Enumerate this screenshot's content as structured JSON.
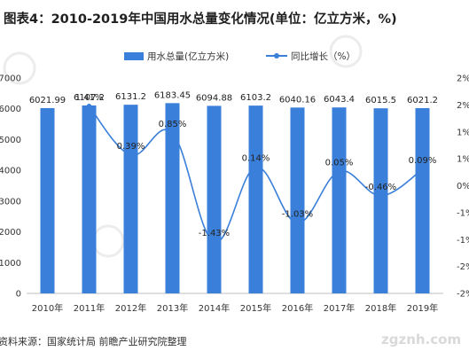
{
  "title": "图表4：2010-2019年中国用水总量变化情况(单位：亿立方米，%)",
  "source": "资料来源：国家统计局 前瞻产业研究院整理",
  "watermark": "zgznh.com",
  "colors": {
    "bar": "#3a7fd9",
    "line": "#3a7fd9",
    "grid": "#e6e6e6"
  },
  "chart_data": {
    "type": "bar",
    "categories": [
      "2010年",
      "2011年",
      "2012年",
      "2013年",
      "2014年",
      "2015年",
      "2016年",
      "2017年",
      "2018年",
      "2019年"
    ],
    "series": [
      {
        "name": "用水总量(亿立方米)",
        "type": "bar",
        "axis": "left",
        "values": [
          6021.99,
          6107.2,
          6131.2,
          6183.45,
          6094.88,
          6103.2,
          6040.16,
          6043.4,
          6015.5,
          6021.2
        ],
        "labels": [
          "6021.99",
          "6107.2",
          "6131.2",
          "6183.45",
          "6094.88",
          "6103.2",
          "6040.16",
          "6043.4",
          "6015.5",
          "6021.2"
        ]
      },
      {
        "name": "同比增长（%）",
        "type": "line",
        "axis": "right",
        "values": [
          null,
          1.41,
          0.39,
          0.85,
          -1.43,
          0.14,
          -1.03,
          0.05,
          -0.46,
          0.09
        ],
        "labels": [
          "",
          "1.41%",
          "0.39%",
          "0.85%",
          "-1.43%",
          "0.14%",
          "-1.03%",
          "0.05%",
          "-0.46%",
          "0.09%"
        ]
      }
    ],
    "y_left": {
      "ticks": [
        "7000",
        "6000",
        "5000",
        "4000",
        "3000",
        "2000",
        "1000",
        "0"
      ],
      "range": [
        0,
        7000
      ]
    },
    "y_right": {
      "ticks": [
        "2%",
        "2%",
        "1%",
        "1%",
        "0%",
        "-1%",
        "-1%",
        "-2%",
        "-2%"
      ],
      "range": [
        -2.5,
        2.0
      ]
    },
    "legend_position": "top",
    "grid": false
  }
}
